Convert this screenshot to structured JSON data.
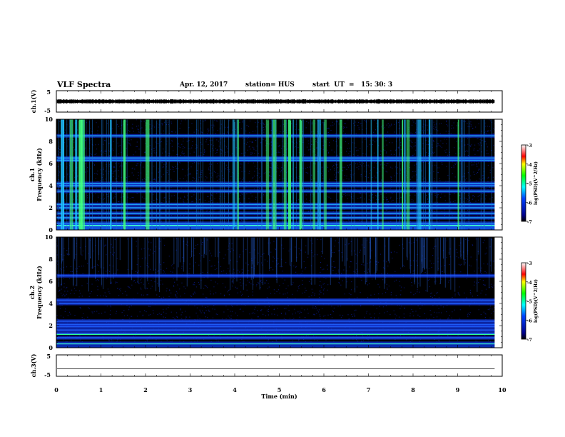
{
  "header": {
    "title": "VLF Spectra",
    "date": "Apr. 12, 2017",
    "station": "station= HUS",
    "start": "start  UT  =   15: 30: 3"
  },
  "colors": {
    "background": "#000000",
    "cmap_low": "#000088",
    "cmap_mid": "#00ffff",
    "cmap_green": "#00ff00",
    "cmap_high": "#ff0000"
  },
  "chart_data": [
    {
      "type": "line",
      "ylabel": "ch.1(V)",
      "ylim": [
        -5,
        5
      ],
      "yticks": [
        5,
        -5
      ],
      "description": "ch.1 waveform noise band centered near 0",
      "band_center": 0,
      "band_halfwidth": 0.9
    },
    {
      "type": "heatmap",
      "ylabel_top": "ch.1",
      "ylabel": "Frequency  (kHz)",
      "ylim": [
        0,
        10
      ],
      "yticks": [
        0,
        2,
        4,
        6,
        8,
        10
      ],
      "xlim": [
        0,
        10
      ],
      "data_end_min": 9.83,
      "colorbar": {
        "label": "log(PSD)(V^2/Hz)",
        "range": [
          -7,
          -3
        ],
        "ticks": [
          "-3",
          "-4",
          "-5",
          "-6",
          "-7"
        ]
      },
      "bands_khz": [
        0.3,
        0.6,
        1.1,
        1.5,
        2.0,
        2.3,
        3.5,
        4.0,
        4.2,
        6.3,
        6.5,
        8.5
      ],
      "burst_minutes": [
        0.1,
        0.3,
        0.42,
        0.5,
        0.55,
        1.2,
        1.5,
        2.0,
        3.95,
        4.05,
        4.7,
        4.85,
        5.1,
        5.2,
        5.3,
        5.45,
        5.75,
        5.85,
        6.0,
        6.35,
        7.05,
        7.2,
        7.3,
        7.75,
        7.8,
        7.85,
        8.1,
        8.35,
        9.0
      ]
    },
    {
      "type": "heatmap",
      "ylabel_top": "ch.2",
      "ylabel": "Frequency  (kHz)",
      "ylim": [
        0,
        10
      ],
      "yticks": [
        0,
        2,
        4,
        6,
        8,
        10
      ],
      "xlim": [
        0,
        10
      ],
      "data_end_min": 9.83,
      "colorbar": {
        "label": "log(PSD)(V^2/Hz)",
        "range": [
          -7,
          -3
        ],
        "ticks": [
          "-3",
          "-4",
          "-5",
          "-6",
          "-7"
        ]
      },
      "bands_khz": [
        0.4,
        0.9,
        1.3,
        1.6,
        1.9,
        2.1,
        2.4,
        4.0,
        4.3,
        6.5
      ],
      "lines_khz": [
        0.35,
        1.2
      ]
    },
    {
      "type": "line",
      "ylabel": "ch.3(V)",
      "ylim": [
        -5,
        5
      ],
      "yticks": [
        5,
        -5
      ],
      "constant_value": -1.5,
      "xlabel": "Time  (min)",
      "xlim": [
        0,
        10
      ],
      "xticks": [
        0,
        1,
        2,
        3,
        4,
        5,
        6,
        7,
        8,
        9,
        10
      ]
    }
  ]
}
